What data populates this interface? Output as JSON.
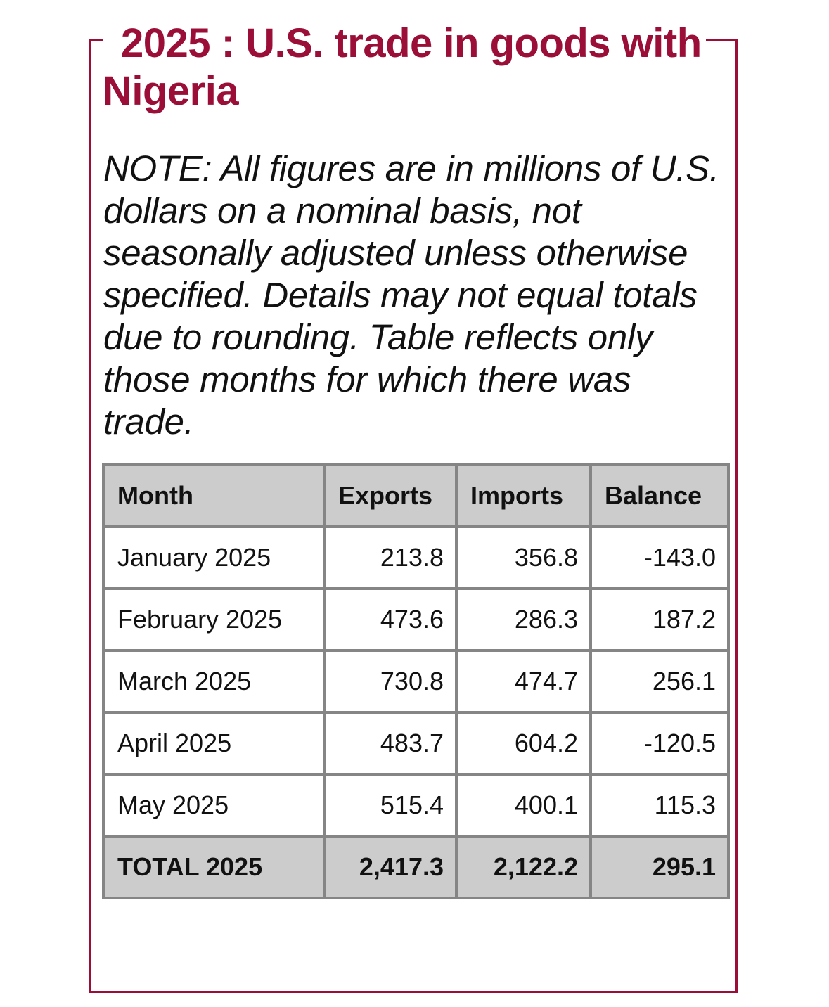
{
  "header": {
    "title_line1": "2025 : U.S. trade in goods with",
    "title_line2": "Nigeria"
  },
  "note": "NOTE: All figures are in millions of U.S. dollars on a nominal basis, not seasonally adjusted unless otherwise specified. Details may not equal totals due to rounding. Table reflects only those months for which there was trade.",
  "table": {
    "columns": [
      "Month",
      "Exports",
      "Imports",
      "Balance"
    ],
    "rows": [
      {
        "month": "January 2025",
        "exports": "213.8",
        "imports": "356.8",
        "balance": "-143.0"
      },
      {
        "month": "February 2025",
        "exports": "473.6",
        "imports": "286.3",
        "balance": "187.2"
      },
      {
        "month": "March 2025",
        "exports": "730.8",
        "imports": "474.7",
        "balance": "256.1"
      },
      {
        "month": "April 2025",
        "exports": "483.7",
        "imports": "604.2",
        "balance": "-120.5"
      },
      {
        "month": "May 2025",
        "exports": "515.4",
        "imports": "400.1",
        "balance": "115.3"
      }
    ],
    "total": {
      "month": "TOTAL 2025",
      "exports": "2,417.3",
      "imports": "2,122.2",
      "balance": "295.1"
    }
  },
  "colors": {
    "accent": "#9a0e37",
    "header_bg": "#cccccc",
    "grid": "#858585"
  }
}
